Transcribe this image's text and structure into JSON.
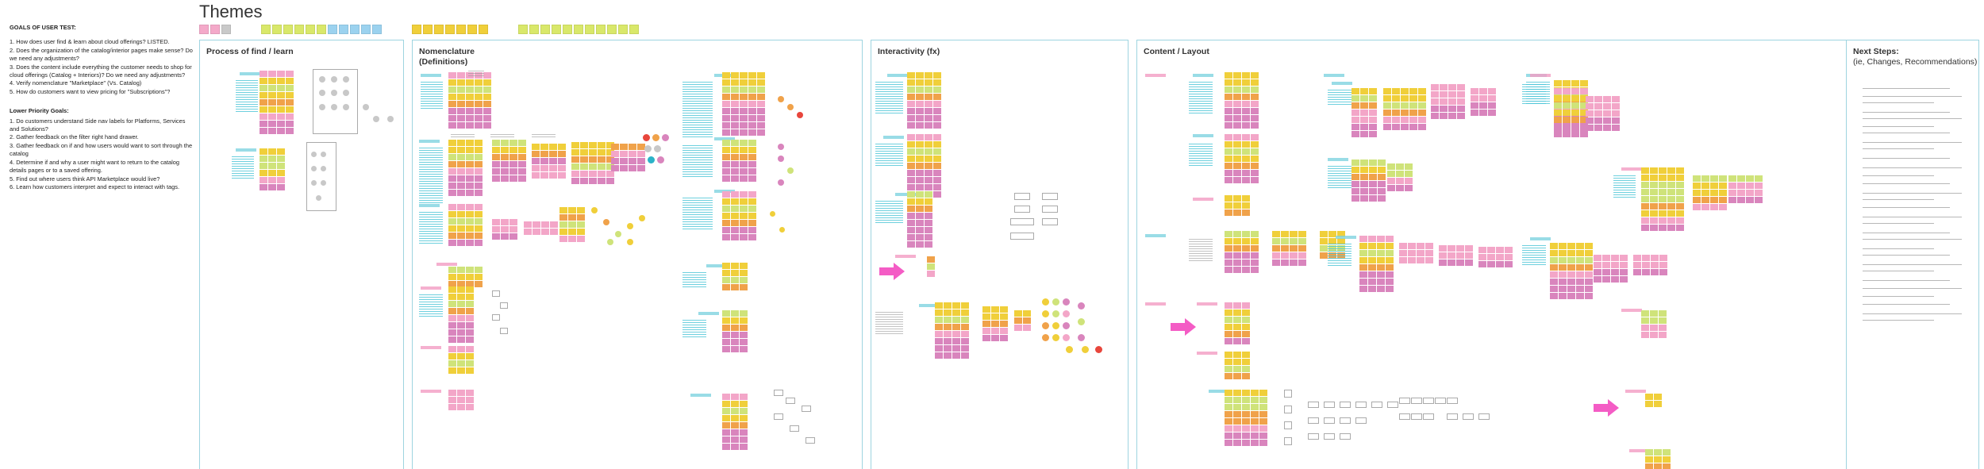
{
  "page": {
    "title": "Themes"
  },
  "goals": {
    "heading": "GOALS OF USER TEST:",
    "items": [
      "1. How does user find & learn about cloud offerings? LISTED.",
      "2. Does the organization of the catalog/interior pages make sense? Do we need any adjustments?",
      "3. Does the content include everything the customer needs to shop for cloud offerings (Catalog + Interiors)? Do we need any adjustments?",
      "4. Verify nomenclature \"Marketplace\" (Vs. Catalog)",
      "5. How do customers want to view pricing for \"Subscriptions\"?"
    ],
    "lower_heading": "Lower Priority Goals:",
    "lower_items": [
      "1. Do customers understand Side nav labels for Platforms, Services and Solutions?",
      "2. Gather feedback on the filter right hand drawer.",
      "3. Gather feedback on if and how users would want to sort through the catalog",
      "4. Determine if and why a user might want to return to the catalog details pages or to a saved offering.",
      "5. Find out where users think API Marketplace would live?",
      "6. Learn how customers interpret and expect to interact with tags."
    ]
  },
  "swatches": [
    "#f4a9c9",
    "#f4a9c9",
    "#c9c9c9",
    "#d9e86a",
    "#d9e86a",
    "#d9e86a",
    "#d9e86a",
    "#d9e86a",
    "#d9e86a",
    "#9bd2ef",
    "#9bd2ef",
    "#9bd2ef",
    "#9bd2ef",
    "#9bd2ef",
    "#f0cf3a",
    "#f0cf3a",
    "#f0cf3a",
    "#f0cf3a",
    "#f0cf3a",
    "#f0cf3a",
    "#f0cf3a",
    "#d9e86a",
    "#d9e86a",
    "#d9e86a",
    "#d9e86a",
    "#d9e86a",
    "#d9e86a",
    "#d9e86a",
    "#d9e86a",
    "#d9e86a",
    "#d9e86a",
    "#d9e86a"
  ],
  "frames": {
    "process": {
      "title": "Process of find / learn"
    },
    "nomenclature": {
      "title": "Nomenclature",
      "subtitle": "(Definitions)"
    },
    "interactivity": {
      "title": "Interactivity (fx)"
    },
    "content": {
      "title": "Content / Layout"
    },
    "next": {
      "title": "Next Steps:",
      "subtitle": "(ie, Changes, Recommendations)"
    }
  },
  "colors": {
    "frame_border": "#9ed4e0",
    "yellow": "#f0cf3a",
    "lime": "#cfe37a",
    "orange": "#f0a24a",
    "pink": "#f3a6c8",
    "magenta": "#d985bd",
    "grey": "#c8c8c8",
    "cyan": "#2bb3c8",
    "hot_pink": "#f45cc5",
    "red": "#e8463c"
  }
}
